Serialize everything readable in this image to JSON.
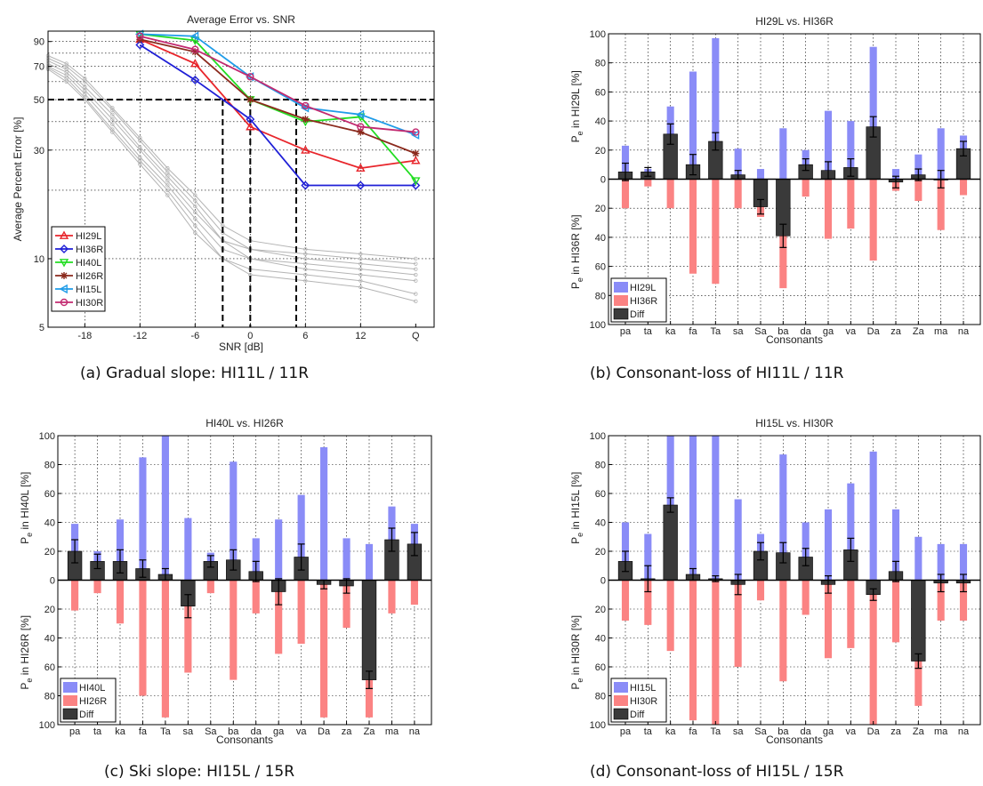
{
  "colors": {
    "hi_left": "#8a8cf7",
    "hi_right": "#fb8383",
    "diff": "#3a3a3a",
    "grid": "#000000",
    "gray_lines": "#b4b4b4"
  },
  "captions": {
    "a": "(a) Gradual slope: HI11L / 11R",
    "b": "(b) Consonant-loss of HI11L / 11R",
    "c": "(c) Ski slope: HI15L / 15R",
    "d": "(d) Consonant-loss of HI15L / 15R"
  },
  "chart_data": [
    {
      "id": "a",
      "type": "line",
      "title": "Average Error vs. SNR",
      "xlabel": "SNR [dB]",
      "ylabel": "Average Percent Error [%]",
      "x_ticks": [
        "-18",
        "-12",
        "-6",
        "0",
        "6",
        "12",
        "Q"
      ],
      "x_values": [
        -12,
        -6,
        0,
        6,
        12,
        18
      ],
      "x_range": [
        -22,
        20
      ],
      "y_scale": "log",
      "y_range": [
        5,
        100
      ],
      "y_ticks": [
        "5",
        "10",
        "30",
        "50",
        "70",
        "90"
      ],
      "y_tick_values": [
        5,
        10,
        30,
        50,
        70,
        90
      ],
      "grid": true,
      "legend_position": "bottom-left",
      "series": [
        {
          "name": "HI29L",
          "color": "#e8252b",
          "marker": "triangle-up",
          "values": [
            92,
            72,
            38,
            30,
            25,
            27
          ]
        },
        {
          "name": "HI36R",
          "color": "#1f1fd6",
          "marker": "diamond",
          "values": [
            87,
            61,
            41,
            21,
            21,
            21
          ]
        },
        {
          "name": "HI40L",
          "color": "#22dd22",
          "marker": "triangle-down",
          "values": [
            97,
            91,
            50,
            40,
            42,
            22
          ]
        },
        {
          "name": "HI26R",
          "color": "#8b2a1d",
          "marker": "star",
          "values": [
            92,
            81,
            50,
            41,
            36,
            29
          ]
        },
        {
          "name": "HI15L",
          "color": "#1f9ce8",
          "marker": "triangle-left",
          "values": [
            97,
            95,
            63,
            46,
            43,
            35
          ]
        },
        {
          "name": "HI30R",
          "color": "#c22a70",
          "marker": "circle",
          "values": [
            95,
            83,
            63,
            47,
            38,
            36
          ]
        }
      ],
      "gray_series": [
        {
          "x": [
            -22,
            -20,
            -18,
            -15,
            -12,
            -9,
            -6,
            -3,
            0,
            6,
            12,
            18
          ],
          "values": [
            78,
            72,
            62,
            46,
            34,
            25,
            19,
            14,
            12,
            11,
            10.5,
            10
          ]
        },
        {
          "x": [
            -22,
            -20,
            -18,
            -15,
            -12,
            -9,
            -6,
            -3,
            0,
            6,
            12,
            18
          ],
          "values": [
            76,
            70,
            60,
            45,
            33,
            24,
            18,
            13,
            11,
            10.5,
            10,
            9.5
          ]
        },
        {
          "x": [
            -22,
            -20,
            -18,
            -15,
            -12,
            -9,
            -6,
            -3,
            0,
            6,
            12,
            18
          ],
          "values": [
            74,
            68,
            57,
            43,
            31,
            23,
            17,
            12,
            11,
            10,
            9.5,
            9
          ]
        },
        {
          "x": [
            -22,
            -20,
            -18,
            -15,
            -12,
            -9,
            -6,
            -3,
            0,
            6,
            12,
            18
          ],
          "values": [
            72,
            66,
            55,
            41,
            30,
            22,
            16,
            12,
            10,
            9.5,
            9,
            8.5
          ]
        },
        {
          "x": [
            -22,
            -20,
            -18,
            -15,
            -12,
            -9,
            -6,
            -3,
            0,
            6,
            12,
            18
          ],
          "values": [
            70,
            64,
            53,
            39,
            28,
            21,
            15,
            11,
            10,
            9,
            8.5,
            8
          ]
        },
        {
          "x": [
            -22,
            -20,
            -18,
            -15,
            -12,
            -9,
            -6,
            -3,
            0,
            6,
            12,
            18
          ],
          "values": [
            69,
            62,
            51,
            37,
            27,
            20,
            14,
            10,
            9,
            8.5,
            8,
            7
          ]
        },
        {
          "x": [
            -22,
            -20,
            -18,
            -15,
            -12,
            -9,
            -6,
            -3,
            0,
            6,
            12,
            18
          ],
          "values": [
            68,
            60,
            50,
            36,
            26,
            19,
            13,
            10,
            8.5,
            8,
            7.5,
            6.5
          ]
        }
      ],
      "reference": {
        "y": 50,
        "x_marks": [
          -3,
          0,
          5
        ]
      }
    },
    {
      "id": "b",
      "type": "bar",
      "title": "HI29L vs. HI36R",
      "xlabel": "Consonants",
      "ylabel_top": "P",
      "ylabel_sub": "e",
      "ylabel_top_suffix": " in HI29L [%]",
      "ylabel_bottom_suffix": " in HI36R [%]",
      "ylim": [
        -100,
        100
      ],
      "y_ticks": [
        "100",
        "80",
        "60",
        "40",
        "20",
        "0",
        "20",
        "40",
        "60",
        "80",
        "100"
      ],
      "categories": [
        "pa",
        "ta",
        "ka",
        "fa",
        "Ta",
        "sa",
        "Sa",
        "ba",
        "da",
        "ga",
        "va",
        "Da",
        "za",
        "Za",
        "ma",
        "na"
      ],
      "legend": [
        "HI29L",
        "HI36R",
        "Diff"
      ],
      "series": [
        {
          "name": "HI29L",
          "values": [
            23,
            7,
            50,
            74,
            97,
            21,
            7,
            35,
            20,
            47,
            40,
            91,
            7,
            17,
            35,
            30
          ]
        },
        {
          "name": "HI36R",
          "values": [
            20,
            5,
            20,
            65,
            72,
            20,
            26,
            75,
            12,
            41,
            34,
            56,
            8,
            15,
            35,
            11
          ]
        },
        {
          "name": "Diff",
          "values": [
            5,
            5,
            31,
            10,
            26,
            3,
            -19,
            -39,
            10,
            6,
            8,
            36,
            -2,
            3,
            0,
            21
          ],
          "err": [
            6,
            3,
            7,
            7,
            6,
            3,
            5,
            8,
            4,
            6,
            6,
            7,
            4,
            4,
            6,
            5
          ]
        }
      ]
    },
    {
      "id": "c",
      "type": "bar",
      "title": "HI40L vs. HI26R",
      "xlabel": "Consonants",
      "ylabel_top": "P",
      "ylabel_sub": "e",
      "ylabel_top_suffix": " in HI40L [%]",
      "ylabel_bottom_suffix": " in HI26R [%]",
      "ylim": [
        -100,
        100
      ],
      "y_ticks": [
        "100",
        "80",
        "60",
        "40",
        "20",
        "0",
        "20",
        "40",
        "60",
        "80",
        "100"
      ],
      "categories": [
        "pa",
        "ta",
        "ka",
        "fa",
        "Ta",
        "sa",
        "Sa",
        "ba",
        "da",
        "ga",
        "va",
        "Da",
        "za",
        "Za",
        "ma",
        "na"
      ],
      "legend": [
        "HI40L",
        "HI26R",
        "Diff"
      ],
      "series": [
        {
          "name": "HI40L",
          "values": [
            39,
            20,
            42,
            85,
            100,
            43,
            19,
            82,
            29,
            42,
            59,
            92,
            29,
            25,
            51,
            39
          ]
        },
        {
          "name": "HI26R",
          "values": [
            21,
            9,
            30,
            80,
            95,
            64,
            9,
            69,
            23,
            51,
            44,
            95,
            33,
            95,
            23,
            17
          ]
        },
        {
          "name": "Diff",
          "values": [
            20,
            13,
            13,
            8,
            4,
            -18,
            13,
            14,
            6,
            -8,
            16,
            -3,
            -4,
            -69,
            28,
            25
          ],
          "err": [
            8,
            5,
            8,
            6,
            4,
            8,
            4,
            7,
            7,
            9,
            9,
            3,
            5,
            6,
            8,
            8
          ]
        }
      ]
    },
    {
      "id": "d",
      "type": "bar",
      "title": "HI15L vs. HI30R",
      "xlabel": "Consonants",
      "ylabel_top": "P",
      "ylabel_sub": "e",
      "ylabel_top_suffix": " in HI15L [%]",
      "ylabel_bottom_suffix": " in HI30R [%]",
      "ylim": [
        -100,
        100
      ],
      "y_ticks": [
        "100",
        "80",
        "60",
        "40",
        "20",
        "0",
        "20",
        "40",
        "60",
        "80",
        "100"
      ],
      "categories": [
        "pa",
        "ta",
        "ka",
        "fa",
        "Ta",
        "sa",
        "Sa",
        "ba",
        "da",
        "ga",
        "va",
        "Da",
        "za",
        "Za",
        "ma",
        "na"
      ],
      "legend": [
        "HI15L",
        "HI30R",
        "Diff"
      ],
      "series": [
        {
          "name": "HI15L",
          "values": [
            40,
            32,
            100,
            100,
            100,
            56,
            32,
            87,
            40,
            49,
            67,
            89,
            49,
            30,
            25,
            25
          ]
        },
        {
          "name": "HI30R",
          "values": [
            28,
            31,
            49,
            97,
            100,
            60,
            14,
            70,
            24,
            54,
            47,
            100,
            43,
            87,
            28,
            28
          ]
        },
        {
          "name": "Diff",
          "values": [
            13,
            1,
            52,
            4,
            1,
            -3,
            20,
            19,
            16,
            -3,
            21,
            -10,
            6,
            -56,
            -2,
            -2
          ],
          "err": [
            7,
            9,
            5,
            4,
            2,
            7,
            6,
            7,
            6,
            6,
            8,
            4,
            7,
            5,
            6,
            6
          ]
        }
      ]
    }
  ]
}
